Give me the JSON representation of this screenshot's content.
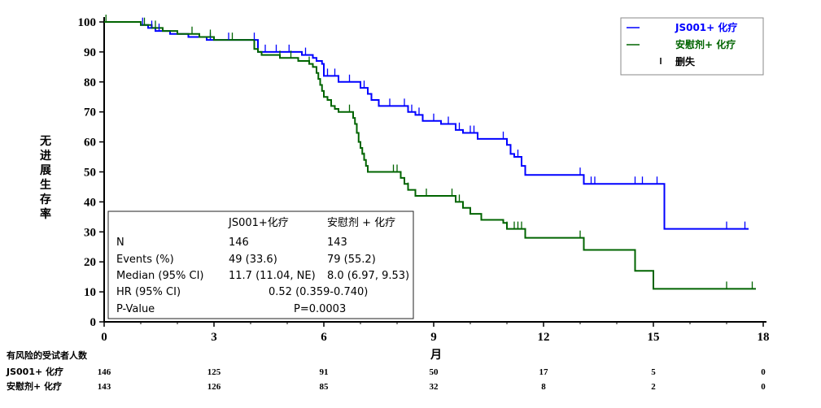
{
  "chart_data": {
    "type": "line",
    "title": "",
    "xlabel": "月",
    "ylabel": "无进展生存率",
    "xlim": [
      0,
      18
    ],
    "ylim": [
      0,
      100
    ],
    "x_ticks": [
      0,
      3,
      6,
      9,
      12,
      15,
      18
    ],
    "y_ticks": [
      0,
      10,
      20,
      30,
      40,
      50,
      60,
      70,
      80,
      90,
      100
    ],
    "legend": {
      "placement": "top-right",
      "entries": [
        {
          "name": "JS001+ 化疗",
          "color": "#0000ff"
        },
        {
          "name": "安慰剂+ 化疗",
          "color": "#006400"
        },
        {
          "name": "删失",
          "color": "#000000"
        }
      ]
    },
    "series": [
      {
        "name": "JS001+ 化疗",
        "color": "#0000ff",
        "steps": [
          [
            0,
            100
          ],
          [
            1.0,
            99
          ],
          [
            1.2,
            98
          ],
          [
            1.4,
            97
          ],
          [
            1.8,
            96
          ],
          [
            2.3,
            95
          ],
          [
            2.8,
            94
          ],
          [
            4.2,
            90
          ],
          [
            5.4,
            89
          ],
          [
            5.7,
            88
          ],
          [
            5.8,
            87
          ],
          [
            5.95,
            86
          ],
          [
            6.0,
            82
          ],
          [
            6.4,
            80
          ],
          [
            7.0,
            78
          ],
          [
            7.2,
            76
          ],
          [
            7.3,
            74
          ],
          [
            7.5,
            72
          ],
          [
            8.3,
            70
          ],
          [
            8.5,
            69
          ],
          [
            8.7,
            67
          ],
          [
            9.2,
            66
          ],
          [
            9.6,
            64
          ],
          [
            9.8,
            63
          ],
          [
            10.2,
            61
          ],
          [
            11.0,
            59
          ],
          [
            11.1,
            56
          ],
          [
            11.2,
            55
          ],
          [
            11.4,
            52
          ],
          [
            11.5,
            49
          ],
          [
            13.1,
            46
          ],
          [
            15.3,
            31
          ],
          [
            17.6,
            31
          ]
        ]
      },
      {
        "name": "安慰剂+ 化疗",
        "color": "#006400",
        "steps": [
          [
            0,
            100
          ],
          [
            1.0,
            99
          ],
          [
            1.3,
            98
          ],
          [
            1.6,
            97
          ],
          [
            2.0,
            96
          ],
          [
            2.6,
            95
          ],
          [
            3.0,
            94
          ],
          [
            4.1,
            91
          ],
          [
            4.2,
            90
          ],
          [
            4.3,
            89
          ],
          [
            4.8,
            88
          ],
          [
            5.3,
            87
          ],
          [
            5.6,
            86
          ],
          [
            5.7,
            85
          ],
          [
            5.8,
            83
          ],
          [
            5.85,
            81
          ],
          [
            5.9,
            79
          ],
          [
            5.95,
            77
          ],
          [
            6.0,
            75
          ],
          [
            6.1,
            74
          ],
          [
            6.2,
            72
          ],
          [
            6.3,
            71
          ],
          [
            6.4,
            70
          ],
          [
            6.8,
            68
          ],
          [
            6.85,
            66
          ],
          [
            6.9,
            63
          ],
          [
            6.95,
            60
          ],
          [
            7.0,
            58
          ],
          [
            7.05,
            56
          ],
          [
            7.1,
            54
          ],
          [
            7.15,
            52
          ],
          [
            7.2,
            50
          ],
          [
            8.1,
            48
          ],
          [
            8.2,
            46
          ],
          [
            8.3,
            44
          ],
          [
            8.5,
            42
          ],
          [
            9.6,
            40
          ],
          [
            9.8,
            38
          ],
          [
            10.0,
            36
          ],
          [
            10.3,
            34
          ],
          [
            10.9,
            33
          ],
          [
            11.0,
            31
          ],
          [
            11.5,
            28
          ],
          [
            13.1,
            24
          ],
          [
            14.5,
            17
          ],
          [
            15.0,
            11
          ],
          [
            17.8,
            11
          ]
        ]
      }
    ],
    "censors": {
      "JS001+ 化疗": [
        1.05,
        1.3,
        1.5,
        2.9,
        3.4,
        4.1,
        4.4,
        4.7,
        5.05,
        5.5,
        6.1,
        6.3,
        6.7,
        7.1,
        7.8,
        8.2,
        8.4,
        8.6,
        9.0,
        9.4,
        9.7,
        10.0,
        10.1,
        10.9,
        11.3,
        13.0,
        13.3,
        13.4,
        14.5,
        14.7,
        15.1,
        17.0,
        17.5
      ],
      "安慰剂+ 化疗": [
        0.05,
        1.1,
        1.4,
        2.4,
        2.9,
        3.5,
        4.1,
        4.8,
        5.1,
        5.6,
        6.7,
        7.1,
        7.9,
        8.0,
        8.3,
        8.8,
        9.5,
        9.7,
        11.0,
        11.2,
        11.3,
        11.4,
        11.5,
        13.0,
        17.0,
        17.7
      ]
    },
    "stats_table": {
      "col_headers": [
        "JS001+化疗",
        "安慰剂 + 化疗"
      ],
      "rows": [
        {
          "label": "N",
          "values": [
            "146",
            "143"
          ]
        },
        {
          "label": "Events (%)",
          "values": [
            "49 (33.6)",
            "79 (55.2)"
          ]
        },
        {
          "label": "Median (95% CI)",
          "values": [
            "11.7 (11.04, NE)",
            "8.0 (6.97, 9.53)"
          ]
        },
        {
          "label": "HR (95% CI)",
          "merged": "0.52 (0.359-0.740)"
        },
        {
          "label": "P-Value",
          "merged": "P=0.0003"
        }
      ]
    },
    "risk_table": {
      "title": "有风险的受试者人数",
      "times": [
        0,
        3,
        6,
        9,
        12,
        15,
        18
      ],
      "rows": [
        {
          "label": "JS001+ 化疗",
          "values": [
            "146",
            "125",
            "91",
            "50",
            "17",
            "5",
            "0"
          ]
        },
        {
          "label": "安慰剂+ 化疗",
          "values": [
            "143",
            "126",
            "85",
            "32",
            "8",
            "2",
            "0"
          ]
        }
      ]
    }
  }
}
